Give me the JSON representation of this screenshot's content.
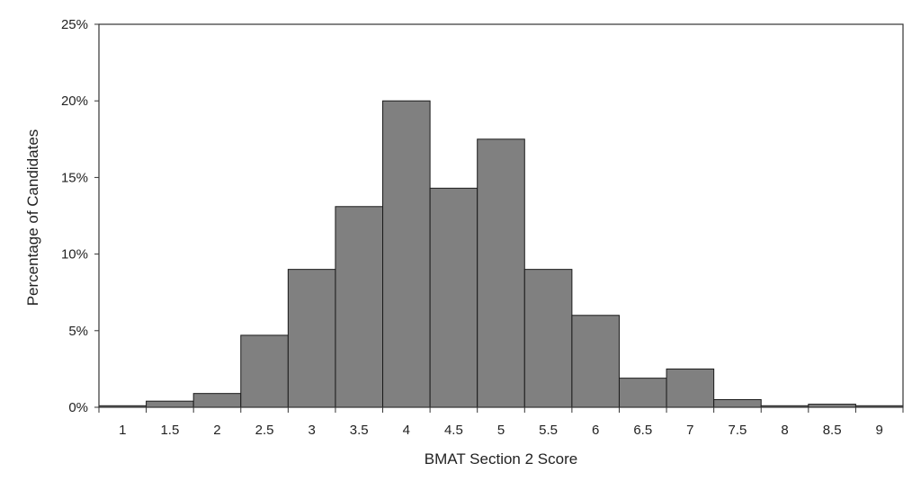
{
  "chart_data": {
    "type": "bar",
    "title": "",
    "xlabel": "BMAT Section 2 Score",
    "ylabel": "Percentage of Candidates",
    "categories": [
      "1",
      "1.5",
      "2",
      "2.5",
      "3",
      "3.5",
      "4",
      "4.5",
      "5",
      "5.5",
      "6",
      "6.5",
      "7",
      "7.5",
      "8",
      "8.5",
      "9"
    ],
    "values": [
      0.1,
      0.4,
      0.9,
      4.7,
      9.0,
      13.1,
      20.0,
      14.3,
      17.5,
      9.0,
      6.0,
      1.9,
      2.5,
      0.5,
      0.1,
      0.2,
      0.1
    ],
    "ylim": [
      0,
      25
    ],
    "y_ticks": [
      {
        "value": 0,
        "label": "0%"
      },
      {
        "value": 5,
        "label": "5%"
      },
      {
        "value": 10,
        "label": "10%"
      },
      {
        "value": 15,
        "label": "15%"
      },
      {
        "value": 20,
        "label": "20%"
      },
      {
        "value": 25,
        "label": "25%"
      }
    ],
    "grid": false,
    "legend": "none",
    "bar_color": "#808080",
    "bar_edge_color": "#1a1a1a"
  }
}
